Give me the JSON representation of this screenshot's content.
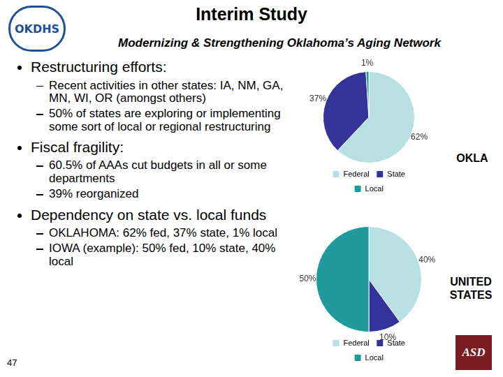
{
  "header": {
    "title": "Interim Study",
    "subtitle": "Modernizing & Strengthening Oklahoma’s Aging Network"
  },
  "logos": {
    "left": "OKDHS",
    "right": "ASD"
  },
  "bullets": [
    {
      "text": "Restructuring efforts:",
      "sub": [
        "Recent activities in other states:  IA, NM, GA, MN, WI, OR (amongst others)",
        "50% of states are exploring or implementing some sort of local or regional restructuring"
      ]
    },
    {
      "text": "Fiscal fragility:",
      "sub": [
        "60.5% of AAAs cut budgets in all or some departments",
        "39% reorganized"
      ]
    },
    {
      "text": "Dependency on state vs. local funds",
      "sub": [
        "OKLAHOMA:  62% fed, 37% state, 1% local",
        "IOWA (example):  50% fed, 10% state, 40% local"
      ]
    }
  ],
  "page_number": 47,
  "chart_data": [
    {
      "type": "pie",
      "title": "OKLA",
      "categories": [
        "Federal",
        "State",
        "Local"
      ],
      "values": [
        62,
        37,
        1
      ],
      "value_labels": [
        "62%",
        "37%",
        "1%"
      ],
      "colors": [
        "#b7dfe4",
        "#333399",
        "#1e9a9a"
      ],
      "data_labels": true,
      "legend": "bottom"
    },
    {
      "type": "pie",
      "title": "UNITED STATES",
      "categories": [
        "Federal",
        "State",
        "Local"
      ],
      "values": [
        40,
        10,
        50
      ],
      "value_labels": [
        "40%",
        "10%",
        "50%"
      ],
      "colors": [
        "#b7dfe4",
        "#333399",
        "#1e9a9a"
      ],
      "data_labels": true,
      "legend": "bottom"
    }
  ]
}
